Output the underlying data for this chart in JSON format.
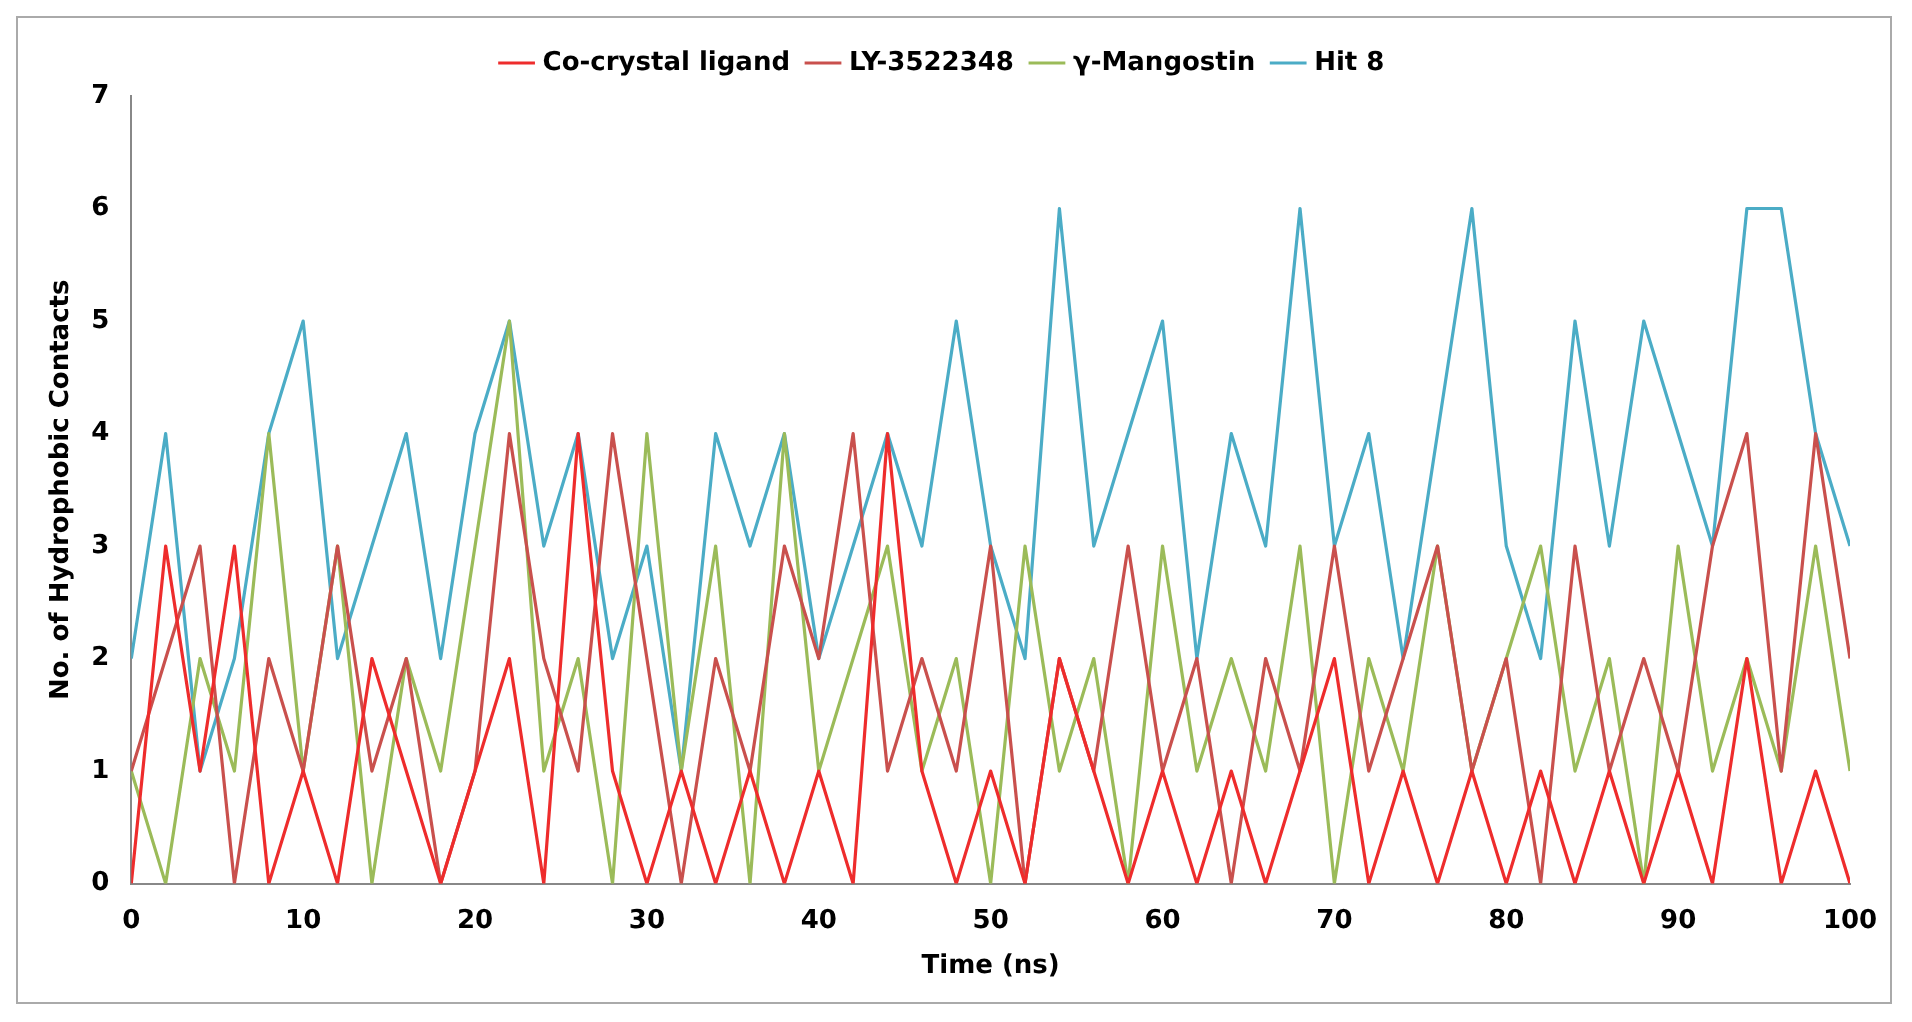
{
  "chart_data": {
    "type": "line",
    "xlabel": "Time (ns)",
    "ylabel": "No. of Hydrophobic Contacts",
    "x": [
      0,
      2,
      4,
      6,
      8,
      10,
      12,
      14,
      16,
      18,
      20,
      22,
      24,
      26,
      28,
      30,
      32,
      34,
      36,
      38,
      40,
      42,
      44,
      46,
      48,
      50,
      52,
      54,
      56,
      58,
      60,
      62,
      64,
      66,
      68,
      70,
      72,
      74,
      76,
      78,
      80,
      82,
      84,
      86,
      88,
      90,
      92,
      94,
      96,
      98,
      100
    ],
    "series": [
      {
        "name": "Co-crystal ligand",
        "color": "#ee2c2c",
        "values": [
          0,
          3,
          1,
          3,
          0,
          1,
          0,
          2,
          1,
          0,
          1,
          2,
          0,
          4,
          1,
          0,
          1,
          0,
          1,
          0,
          1,
          0,
          4,
          1,
          0,
          1,
          0,
          2,
          1,
          0,
          1,
          0,
          1,
          0,
          1,
          2,
          0,
          1,
          0,
          1,
          0,
          1,
          0,
          1,
          0,
          1,
          0,
          2,
          0,
          1,
          0
        ]
      },
      {
        "name": "LY-3522348",
        "color": "#c9504d",
        "values": [
          1,
          2,
          3,
          0,
          2,
          1,
          3,
          1,
          2,
          0,
          1,
          4,
          2,
          1,
          4,
          2,
          0,
          2,
          1,
          3,
          2,
          4,
          1,
          2,
          1,
          3,
          0,
          2,
          1,
          3,
          1,
          2,
          0,
          2,
          1,
          3,
          1,
          2,
          3,
          1,
          2,
          0,
          3,
          1,
          2,
          1,
          3,
          4,
          1,
          4,
          2
        ]
      },
      {
        "name": "γ-Mangostin",
        "color": "#9bbb59",
        "values": [
          1,
          0,
          2,
          1,
          4,
          1,
          3,
          0,
          2,
          1,
          3,
          5,
          1,
          2,
          0,
          4,
          1,
          3,
          0,
          4,
          1,
          2,
          3,
          1,
          2,
          0,
          3,
          1,
          2,
          0,
          3,
          1,
          2,
          1,
          3,
          0,
          2,
          1,
          3,
          1,
          2,
          3,
          1,
          2,
          0,
          3,
          1,
          2,
          1,
          3,
          1
        ]
      },
      {
        "name": "Hit 8",
        "color": "#4bacc6",
        "values": [
          2,
          4,
          1,
          2,
          4,
          5,
          2,
          3,
          4,
          2,
          4,
          5,
          3,
          4,
          2,
          3,
          1,
          4,
          3,
          4,
          2,
          3,
          4,
          3,
          5,
          3,
          2,
          6,
          3,
          4,
          5,
          2,
          4,
          3,
          6,
          3,
          4,
          2,
          4,
          6,
          3,
          2,
          5,
          3,
          5,
          4,
          3,
          6,
          6,
          4,
          3
        ]
      }
    ],
    "xlim": [
      0,
      100
    ],
    "xticks": [
      0,
      10,
      20,
      30,
      40,
      50,
      60,
      70,
      80,
      90,
      100
    ],
    "ylim": [
      0,
      7
    ],
    "yticks": [
      0,
      1,
      2,
      3,
      4,
      5,
      6,
      7
    ],
    "grid": false,
    "legend": "top",
    "marker": "none",
    "line_style": "solid"
  }
}
